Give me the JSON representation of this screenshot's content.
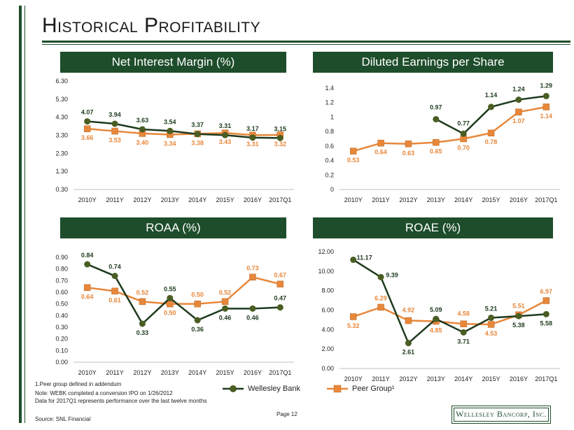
{
  "page": {
    "title": "Historical Profitability",
    "page_number": "Page 12",
    "footnote_1": "1.Peer group defined in addendum",
    "footnote_2": "Note: WEBK completed a conversion IPO on 1/26/2012",
    "footnote_3": "Data for 2017Q1 represents performance over the last twelve months",
    "source": "Source: SNL Financial",
    "logo_text": "Wellesley Bancorp, Inc.",
    "legend_series_1": "Wellesley Bank",
    "legend_series_2": "Peer Group¹",
    "colors": {
      "bank": "#4a5d23",
      "bank_line": "#1e3a1e",
      "peer": "#e8873a",
      "banner": "#1e4d2b"
    }
  },
  "chart_data": [
    {
      "type": "line",
      "title": "Net Interest Margin (%)",
      "categories": [
        "2010Y",
        "2011Y",
        "2012Y",
        "2013Y",
        "2014Y",
        "2015Y",
        "2016Y",
        "2017Q1"
      ],
      "ylim": [
        0.3,
        6.3
      ],
      "yticks": [
        "0.30",
        "1.30",
        "2.30",
        "3.30",
        "4.30",
        "5.30",
        "6.30"
      ],
      "series": [
        {
          "name": "Wellesley Bank",
          "values": [
            4.07,
            3.94,
            3.63,
            3.54,
            3.37,
            3.31,
            3.17,
            3.15
          ],
          "labels": [
            "4.07",
            "3.94",
            "3.63",
            "3.54",
            "3.37",
            "3.31",
            "3.17",
            "3.15"
          ]
        },
        {
          "name": "Peer Group",
          "values": [
            3.66,
            3.53,
            3.4,
            3.34,
            3.38,
            3.43,
            3.31,
            3.32
          ],
          "labels": [
            "3.66",
            "3.53",
            "3.40",
            "3.34",
            "3.38",
            "3.43",
            "3.31",
            "3.32"
          ]
        }
      ]
    },
    {
      "type": "line",
      "title": "Diluted Earnings per Share",
      "categories": [
        "2010Y",
        "2011Y",
        "2012Y",
        "2013Y",
        "2014Y",
        "2015Y",
        "2016Y",
        "2017Q1"
      ],
      "ylim": [
        0,
        1.4
      ],
      "yticks": [
        "0",
        "0.2",
        "0.4",
        "0.6",
        "0.8",
        "1",
        "1.2",
        "1.4"
      ],
      "series": [
        {
          "name": "Wellesley Bank",
          "values": [
            null,
            null,
            null,
            0.97,
            0.77,
            1.14,
            1.24,
            1.29
          ],
          "labels": [
            null,
            null,
            null,
            "0.97",
            "0.77",
            "1.14",
            "1.24",
            "1.29"
          ]
        },
        {
          "name": "Peer Group",
          "values": [
            0.53,
            0.64,
            0.63,
            0.65,
            0.7,
            0.78,
            1.07,
            1.14
          ],
          "labels": [
            "0.53",
            "0.64",
            "0.63",
            "0.65",
            "0.70",
            "0.78",
            "1.07",
            "1.14"
          ]
        }
      ]
    },
    {
      "type": "line",
      "title": "ROAA (%)",
      "categories": [
        "2010Y",
        "2011Y",
        "2012Y",
        "2013Y",
        "2014Y",
        "2015Y",
        "2016Y",
        "2017Q1"
      ],
      "ylim": [
        0,
        0.9
      ],
      "yticks": [
        "0.00",
        "0.10",
        "0.20",
        "0.30",
        "0.40",
        "0.50",
        "0.60",
        "0.70",
        "0.80",
        "0.90"
      ],
      "series": [
        {
          "name": "Wellesley Bank",
          "values": [
            0.84,
            0.74,
            0.33,
            0.55,
            0.36,
            0.46,
            0.46,
            0.47
          ],
          "labels": [
            "0.84",
            "0.74",
            "0.33",
            "0.55",
            "0.36",
            "0.46",
            "0.46",
            "0.47"
          ]
        },
        {
          "name": "Peer Group",
          "values": [
            0.64,
            0.61,
            0.52,
            0.5,
            0.5,
            0.52,
            0.73,
            0.67
          ],
          "labels": [
            "0.64",
            "0.61",
            "0.52",
            "0.50",
            "0.50",
            "0.52",
            "0.73",
            "0.67"
          ]
        }
      ]
    },
    {
      "type": "line",
      "title": "ROAE (%)",
      "categories": [
        "2010Y",
        "2011Y",
        "2012Y",
        "2013Y",
        "2014Y",
        "2015Y",
        "2016Y",
        "2017Q1"
      ],
      "ylim": [
        0,
        12
      ],
      "yticks": [
        "0.00",
        "2.00",
        "4.00",
        "6.00",
        "8.00",
        "10.00",
        "12.00"
      ],
      "series": [
        {
          "name": "Wellesley Bank",
          "values": [
            11.17,
            9.39,
            2.61,
            5.09,
            3.71,
            5.21,
            5.38,
            5.58
          ],
          "labels": [
            "11.17",
            "9.39",
            "2.61",
            "5.09",
            "3.71",
            "5.21",
            "5.38",
            "5.58"
          ]
        },
        {
          "name": "Peer Group",
          "values": [
            5.32,
            6.29,
            4.92,
            4.85,
            4.58,
            4.53,
            5.51,
            6.97
          ],
          "labels": [
            "5.32",
            "6.29",
            "4.92",
            "4.85",
            "4.58",
            "4.53",
            "5.51",
            "6.97"
          ]
        }
      ]
    }
  ]
}
